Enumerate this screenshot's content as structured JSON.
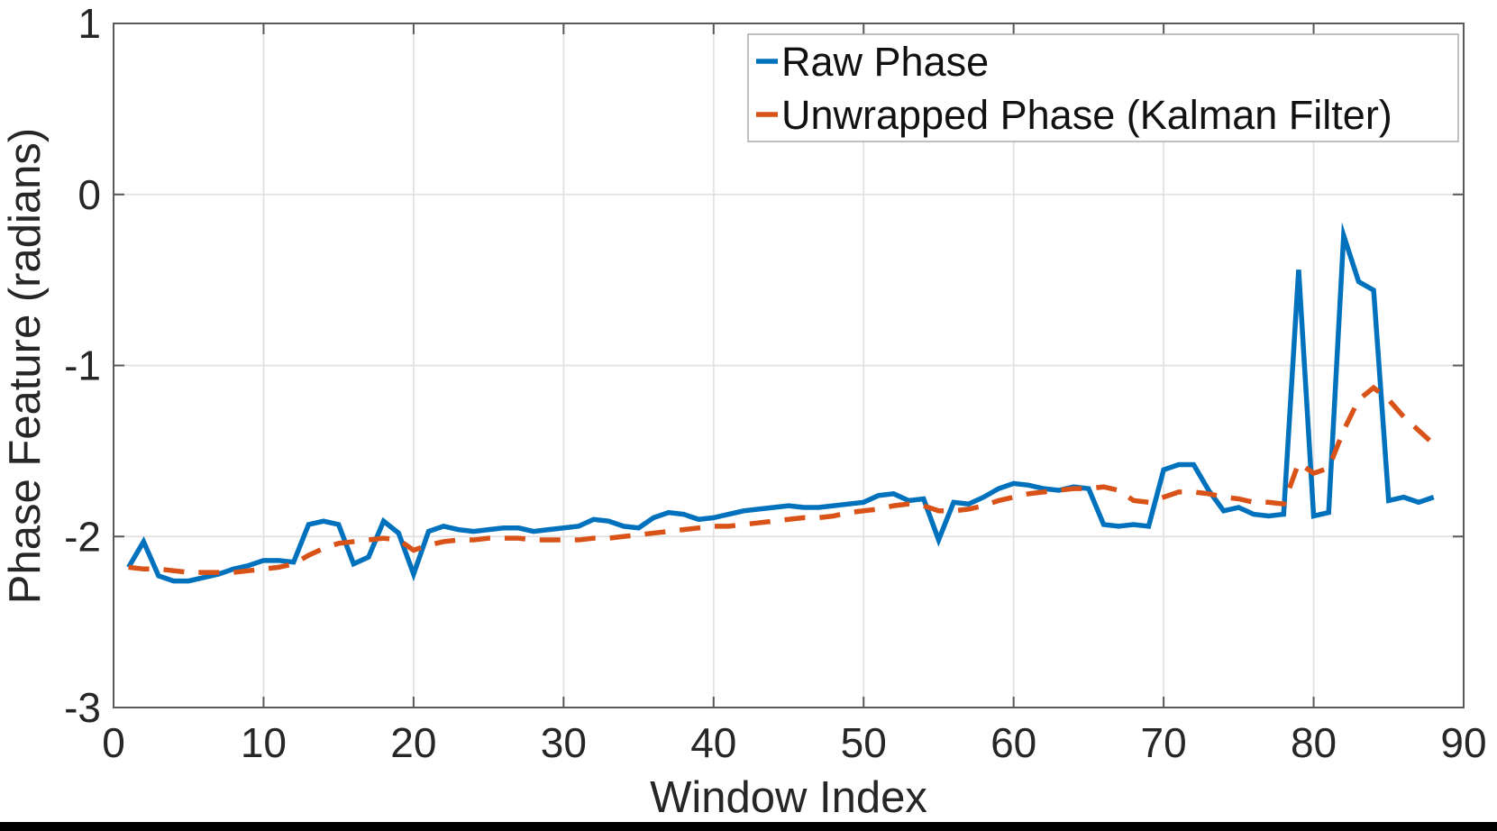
{
  "figure": {
    "background": "#ffffff",
    "bottom_bar_color": "#000000"
  },
  "axes_style": {
    "spine_color": "#595959",
    "tick_color": "#595959",
    "grid_color": "#e2e2e2",
    "text_color": "#262626",
    "legend_border_color": "#ababab",
    "legend_background": "#ffffff"
  },
  "chart_data": {
    "type": "line",
    "title": "",
    "xlabel": "Window Index",
    "ylabel": "Phase Feature (radians)",
    "xlim": [
      0,
      90
    ],
    "ylim": [
      -3,
      1
    ],
    "xticks": [
      0,
      10,
      20,
      30,
      40,
      50,
      60,
      70,
      80,
      90
    ],
    "yticks": [
      -3,
      -2,
      -1,
      0,
      1
    ],
    "grid": true,
    "legend_position": "top-right",
    "x": [
      1,
      2,
      3,
      4,
      5,
      6,
      7,
      8,
      9,
      10,
      11,
      12,
      13,
      14,
      15,
      16,
      17,
      18,
      19,
      20,
      21,
      22,
      23,
      24,
      25,
      26,
      27,
      28,
      29,
      30,
      31,
      32,
      33,
      34,
      35,
      36,
      37,
      38,
      39,
      40,
      41,
      42,
      43,
      44,
      45,
      46,
      47,
      48,
      49,
      50,
      51,
      52,
      53,
      54,
      55,
      56,
      57,
      58,
      59,
      60,
      61,
      62,
      63,
      64,
      65,
      66,
      67,
      68,
      69,
      70,
      71,
      72,
      73,
      74,
      75,
      76,
      77,
      78,
      79,
      80,
      81,
      82,
      83,
      84,
      85,
      86,
      87,
      88
    ],
    "series": [
      {
        "name": "Raw Phase",
        "color": "#0072BD",
        "style": "solid",
        "line_width": 5.5,
        "values": [
          -2.18,
          -2.03,
          -2.23,
          -2.26,
          -2.26,
          -2.24,
          -2.22,
          -2.19,
          -2.17,
          -2.14,
          -2.14,
          -2.15,
          -1.93,
          -1.91,
          -1.93,
          -2.16,
          -2.12,
          -1.91,
          -1.98,
          -2.22,
          -1.97,
          -1.94,
          -1.96,
          -1.97,
          -1.96,
          -1.95,
          -1.95,
          -1.97,
          -1.96,
          -1.95,
          -1.94,
          -1.9,
          -1.91,
          -1.94,
          -1.95,
          -1.89,
          -1.86,
          -1.87,
          -1.9,
          -1.89,
          -1.87,
          -1.85,
          -1.84,
          -1.83,
          -1.82,
          -1.83,
          -1.83,
          -1.82,
          -1.81,
          -1.8,
          -1.76,
          -1.75,
          -1.79,
          -1.78,
          -2.02,
          -1.8,
          -1.81,
          -1.77,
          -1.72,
          -1.69,
          -1.7,
          -1.72,
          -1.73,
          -1.71,
          -1.72,
          -1.93,
          -1.94,
          -1.93,
          -1.94,
          -1.61,
          -1.58,
          -1.58,
          -1.73,
          -1.85,
          -1.83,
          -1.87,
          -1.88,
          -1.87,
          -0.44,
          -1.88,
          -1.86,
          -0.24,
          -0.51,
          -0.56,
          -1.79,
          -1.77,
          -1.8,
          -1.77
        ]
      },
      {
        "name": "Unwrapped Phase (Kalman Filter)",
        "color": "#D95319",
        "style": "dashed",
        "line_width": 5.5,
        "values": [
          -2.18,
          -2.19,
          -2.19,
          -2.2,
          -2.21,
          -2.21,
          -2.21,
          -2.21,
          -2.2,
          -2.19,
          -2.18,
          -2.16,
          -2.11,
          -2.07,
          -2.04,
          -2.03,
          -2.02,
          -2.01,
          -2.02,
          -2.08,
          -2.05,
          -2.03,
          -2.02,
          -2.02,
          -2.01,
          -2.01,
          -2.01,
          -2.02,
          -2.02,
          -2.02,
          -2.02,
          -2.01,
          -2.01,
          -2.0,
          -1.99,
          -1.98,
          -1.97,
          -1.96,
          -1.95,
          -1.94,
          -1.94,
          -1.93,
          -1.92,
          -1.91,
          -1.9,
          -1.89,
          -1.89,
          -1.88,
          -1.86,
          -1.85,
          -1.84,
          -1.82,
          -1.81,
          -1.82,
          -1.85,
          -1.85,
          -1.84,
          -1.82,
          -1.79,
          -1.77,
          -1.75,
          -1.74,
          -1.73,
          -1.72,
          -1.72,
          -1.71,
          -1.73,
          -1.79,
          -1.8,
          -1.77,
          -1.74,
          -1.74,
          -1.75,
          -1.77,
          -1.78,
          -1.8,
          -1.8,
          -1.81,
          -1.57,
          -1.63,
          -1.6,
          -1.38,
          -1.2,
          -1.13,
          -1.2,
          -1.3,
          -1.38,
          -1.46
        ]
      }
    ]
  }
}
